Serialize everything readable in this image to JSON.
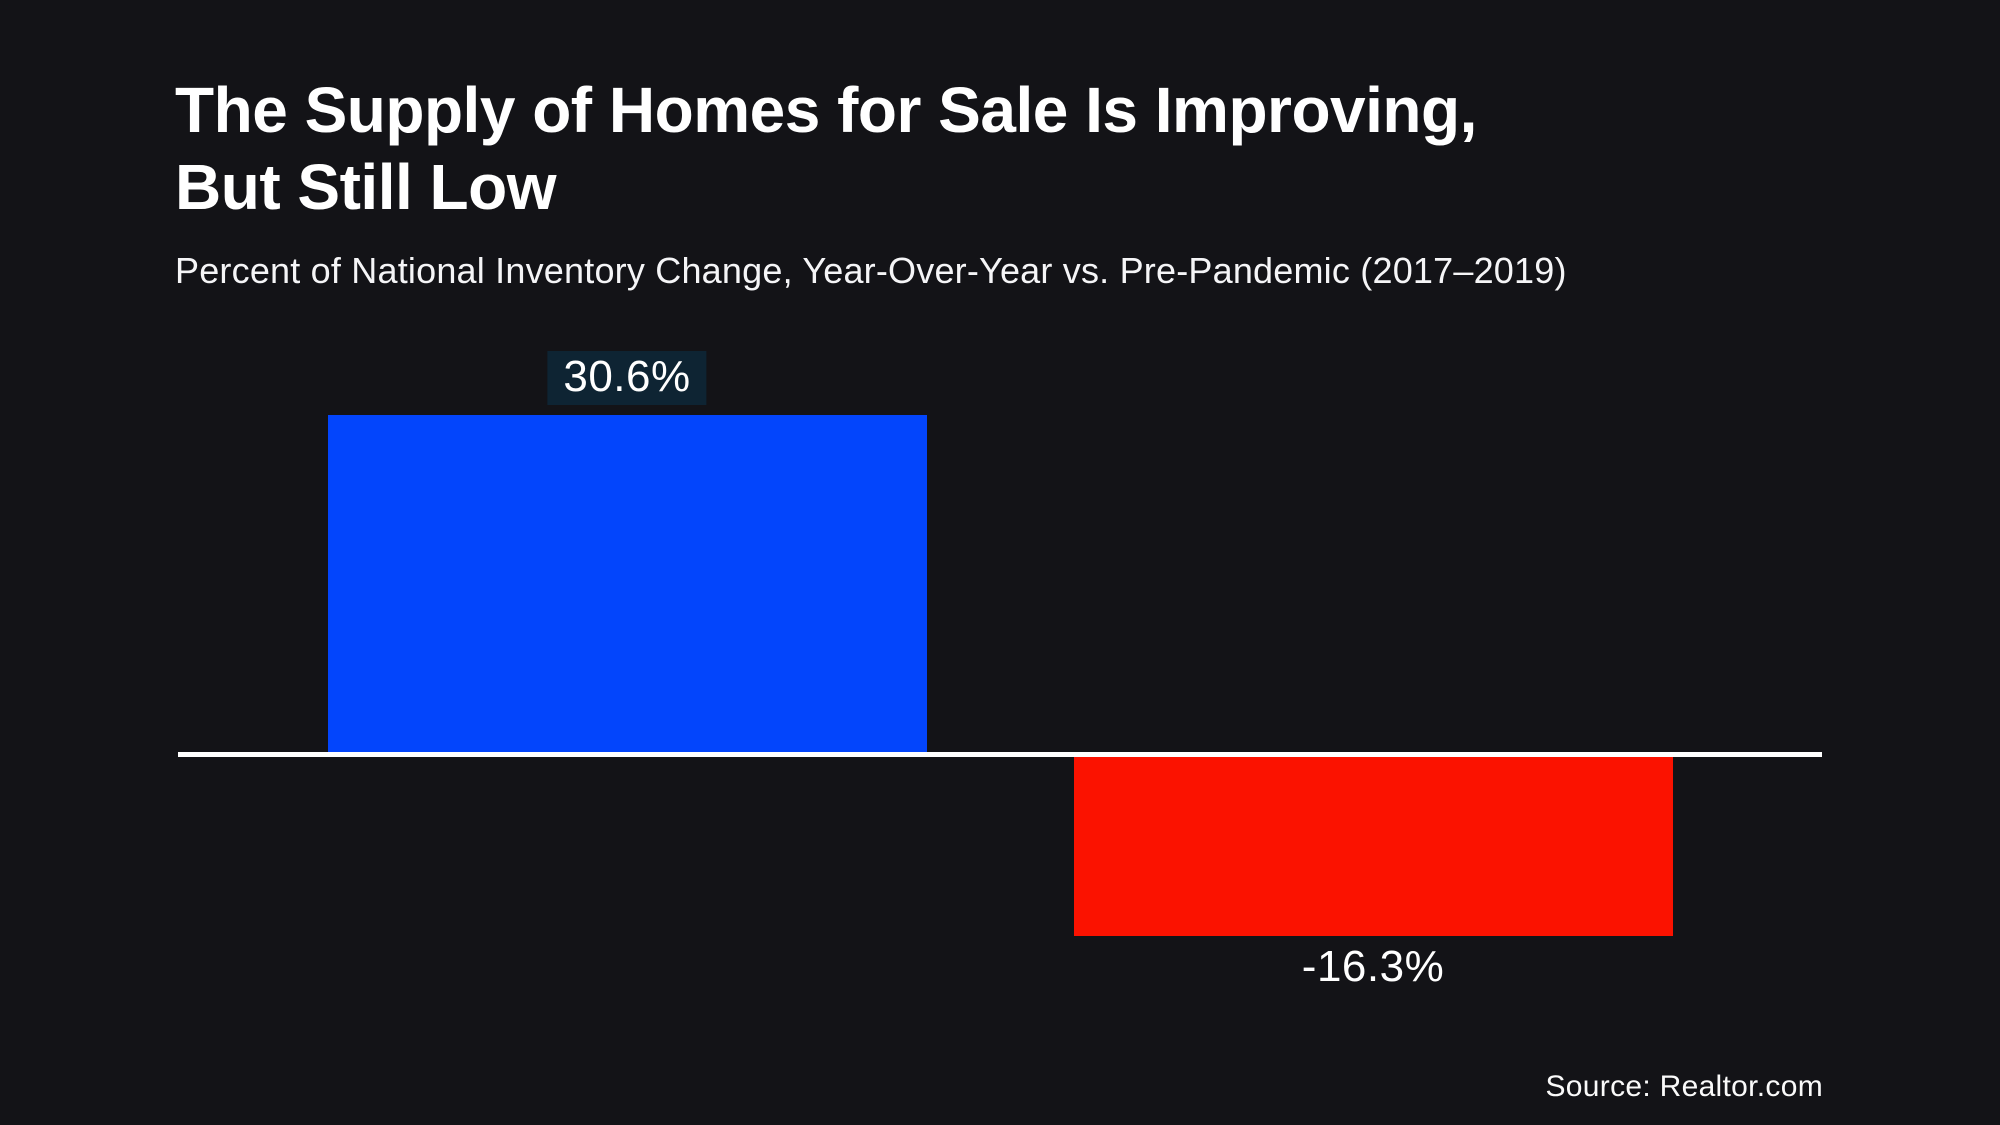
{
  "header": {
    "title_lines": [
      "The Supply of Homes for Sale Is Improving,",
      "But Still Low"
    ],
    "subtitle": "Percent of National Inventory Change, Year-Over-Year vs. Pre-Pandemic (2017–2019)"
  },
  "chart_data": {
    "type": "bar",
    "title": "The Supply of Homes for Sale Is Improving, But Still Low",
    "subtitle": "Percent of National Inventory Change, Year-Over-Year vs. Pre-Pandemic (2017–2019)",
    "values": [
      30.6,
      -16.3
    ],
    "value_labels": [
      "30.6%",
      "-16.3%"
    ],
    "bar_colors": [
      "#0345fc",
      "#fb1200"
    ],
    "baseline_value": 0,
    "ylim": [
      -16.3,
      30.6
    ],
    "gridlines": false,
    "axis_tick_labels": "none",
    "legend_position": "none"
  },
  "footer": {
    "source": "Source: Realtor.com"
  },
  "colors": {
    "background": "#131317",
    "text": "#ffffff",
    "positive_bar": "#0345fc",
    "negative_bar": "#fb1200",
    "baseline": "#ffffff",
    "value_badge_bg": "#0e2433"
  }
}
